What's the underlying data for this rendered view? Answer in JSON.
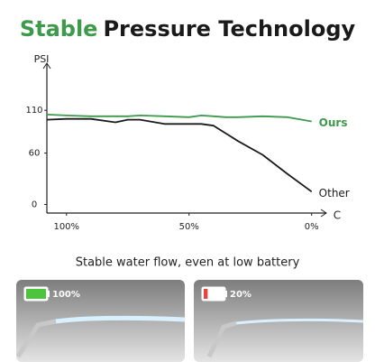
{
  "chart_data": {
    "type": "line",
    "title_highlight": "Stable",
    "title": "Pressure Technology",
    "y_label": "PSI",
    "x_label": "C",
    "x": [
      108,
      100,
      90,
      80,
      75,
      70,
      60,
      50,
      45,
      40,
      35,
      30,
      20,
      10,
      0
    ],
    "xlim": [
      108,
      -6
    ],
    "xticks": [
      {
        "value": 100,
        "label": "100%"
      },
      {
        "value": 50,
        "label": "50%"
      },
      {
        "value": 0,
        "label": "0%"
      }
    ],
    "ylim": [
      -10,
      165
    ],
    "yticks": [
      0,
      60,
      110
    ],
    "series": [
      {
        "name": "Ours",
        "color": "#3c9a4a",
        "values": [
          105,
          104,
          103,
          103,
          103,
          104,
          103,
          102,
          104,
          103,
          102,
          102,
          103,
          102,
          97
        ]
      },
      {
        "name": "Other",
        "color": "#1a1a1a",
        "values": [
          99,
          100,
          100,
          96,
          99,
          99,
          94,
          94,
          94,
          92,
          83,
          74,
          58,
          36,
          15
        ]
      }
    ]
  },
  "subtitle": "Stable water flow, even at low battery",
  "panels": [
    {
      "label": "100%",
      "color": "#4cc43c",
      "level": 100
    },
    {
      "label": "20%",
      "color": "#e04848",
      "level": 20
    }
  ]
}
